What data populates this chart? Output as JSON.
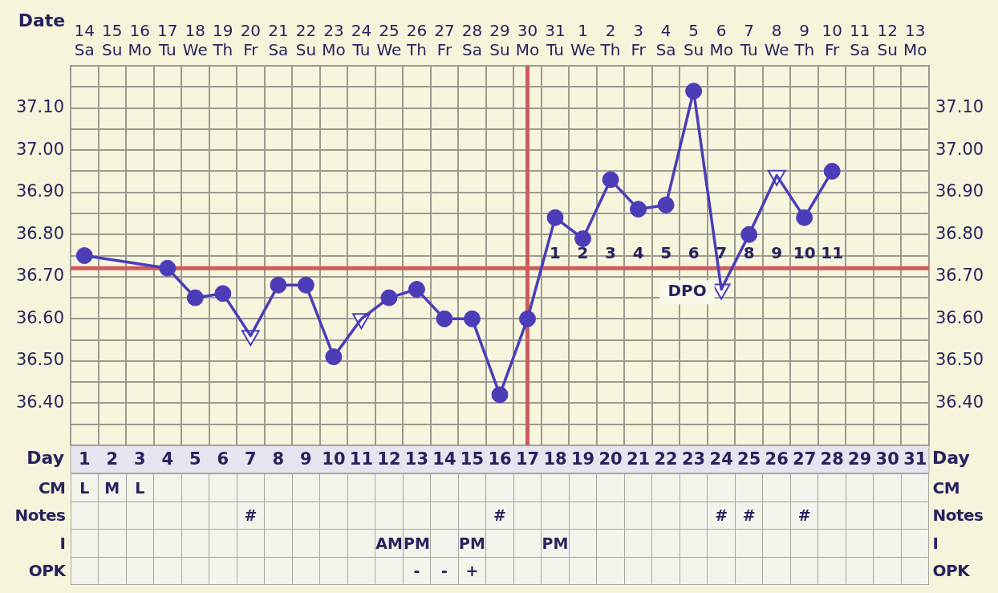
{
  "chart_data": [
    {
      "type": "line",
      "xlabel": "Date",
      "x2label": "Day",
      "categories": [
        "14 Sa",
        "15 Su",
        "16 Mo",
        "17 Tu",
        "18 We",
        "19 Th",
        "20 Fr",
        "21 Sa",
        "22 Su",
        "23 Mo",
        "24 Tu",
        "25 We",
        "26 Th",
        "27 Fr",
        "28 Sa",
        "29 Su",
        "30 Mo",
        "31 Tu",
        "1 We",
        "2 Th",
        "3 Fr",
        "4 Sa",
        "5 Su",
        "6 Mo",
        "7 Tu",
        "8 We",
        "9 Th",
        "10 Fr",
        "11 Sa",
        "12 Su",
        "13 Mo"
      ],
      "x2lim": [
        0.5,
        31.5
      ],
      "x2ticks": [
        1,
        2,
        3,
        4,
        5,
        6,
        7,
        8,
        9,
        10,
        11,
        12,
        13,
        14,
        15,
        16,
        17,
        18,
        19,
        20,
        21,
        22,
        23,
        24,
        25,
        26,
        27,
        28,
        29,
        30,
        31
      ],
      "series": [
        {
          "type": "line",
          "marker": "none",
          "color": "#4b3db8",
          "values": [
            36.75,
            null,
            null,
            36.72,
            36.65,
            36.66,
            36.56,
            36.68,
            36.68,
            36.51,
            36.6,
            36.65,
            36.67,
            36.6,
            36.6,
            36.42,
            36.6,
            36.84,
            36.79,
            36.93,
            36.86,
            36.87,
            37.14,
            36.67,
            36.8,
            36.94,
            36.84,
            36.95,
            null,
            null,
            null
          ]
        },
        {
          "type": "scatter",
          "marker": "circle",
          "color": "#4b3db8",
          "values": [
            36.75,
            null,
            null,
            36.72,
            36.65,
            36.66,
            null,
            36.68,
            36.68,
            36.51,
            null,
            36.65,
            36.67,
            36.6,
            36.6,
            36.42,
            36.6,
            36.84,
            36.79,
            36.93,
            36.86,
            36.87,
            37.14,
            null,
            36.8,
            null,
            36.84,
            36.95,
            null,
            null,
            null
          ]
        },
        {
          "type": "scatter",
          "marker": "triangle",
          "color": "#4b3db8",
          "values": [
            null,
            null,
            null,
            null,
            null,
            null,
            36.56,
            null,
            null,
            null,
            36.6,
            null,
            null,
            null,
            null,
            null,
            null,
            null,
            null,
            null,
            null,
            null,
            null,
            36.67,
            null,
            36.94,
            null,
            null,
            null,
            null,
            null
          ]
        }
      ],
      "ylim": [
        36.3,
        37.2
      ],
      "yticks": [
        {
          "value": 36.35,
          "label": null
        },
        {
          "value": 36.4,
          "label": "36.40"
        },
        {
          "value": 36.45,
          "label": null
        },
        {
          "value": 36.5,
          "label": "36.50"
        },
        {
          "value": 36.55,
          "label": null
        },
        {
          "value": 36.6,
          "label": "36.60"
        },
        {
          "value": 36.65,
          "label": null
        },
        {
          "value": 36.7,
          "label": "36.70"
        },
        {
          "value": 36.75,
          "label": null
        },
        {
          "value": 36.8,
          "label": "36.80"
        },
        {
          "value": 36.85,
          "label": null
        },
        {
          "value": 36.9,
          "label": "36.90"
        },
        {
          "value": 36.95,
          "label": null
        },
        {
          "value": 37.0,
          "label": "37.00"
        },
        {
          "value": 37.05,
          "label": null
        },
        {
          "value": 37.1,
          "label": "37.10"
        },
        {
          "value": 37.15,
          "label": null
        }
      ],
      "y2lim": [
        36.3,
        37.2
      ],
      "y2ticks": [
        {
          "value": 36.35,
          "label": null
        },
        {
          "value": 36.4,
          "label": "36.40"
        },
        {
          "value": 36.45,
          "label": null
        },
        {
          "value": 36.5,
          "label": "36.50"
        },
        {
          "value": 36.55,
          "label": null
        },
        {
          "value": 36.6,
          "label": "36.60"
        },
        {
          "value": 36.65,
          "label": null
        },
        {
          "value": 36.7,
          "label": "36.70"
        },
        {
          "value": 36.75,
          "label": null
        },
        {
          "value": 36.8,
          "label": "36.80"
        },
        {
          "value": 36.85,
          "label": null
        },
        {
          "value": 36.9,
          "label": "36.90"
        },
        {
          "value": 36.95,
          "label": null
        },
        {
          "value": 37.0,
          "label": "37.00"
        },
        {
          "value": 37.05,
          "label": null
        },
        {
          "value": 37.1,
          "label": "37.10"
        },
        {
          "value": 37.15,
          "label": null
        }
      ],
      "grid": true,
      "ref_lines": [
        {
          "axis": "y",
          "value": 36.72,
          "color": "#cd5c5c"
        },
        {
          "axis": "x",
          "value": "30 Mo",
          "color": "#cd5c5c"
        }
      ],
      "annotations": [
        "1",
        "2",
        "3",
        "4",
        "5",
        "6",
        "7",
        "8",
        "9",
        "10",
        "11",
        "DPO"
      ]
    },
    {
      "type": "other",
      "y_categories": [
        "CM",
        "Notes",
        "I",
        "OPK"
      ],
      "y2_categories": [
        "CM",
        "Notes",
        "I",
        "OPK"
      ],
      "cell_labels": [
        [
          "L",
          "M",
          "L",
          null,
          null,
          null,
          null,
          null,
          null,
          null,
          null,
          null,
          null,
          null,
          null,
          null,
          null,
          null,
          null,
          null,
          null,
          null,
          null,
          null,
          null,
          null,
          null,
          null,
          null,
          null,
          null
        ],
        [
          null,
          null,
          null,
          null,
          null,
          null,
          "#",
          null,
          null,
          null,
          null,
          null,
          null,
          null,
          null,
          "#",
          null,
          null,
          null,
          null,
          null,
          null,
          null,
          "#",
          "#",
          null,
          "#",
          null,
          null,
          null,
          null
        ],
        [
          null,
          null,
          null,
          null,
          null,
          null,
          null,
          null,
          null,
          null,
          null,
          "AM",
          "PM",
          null,
          "PM",
          null,
          null,
          "PM",
          null,
          null,
          null,
          null,
          null,
          null,
          null,
          null,
          null,
          null,
          null,
          null,
          null
        ],
        [
          null,
          null,
          null,
          null,
          null,
          null,
          null,
          null,
          null,
          null,
          null,
          null,
          "-",
          "-",
          "+",
          null,
          null,
          null,
          null,
          null,
          null,
          null,
          null,
          null,
          null,
          null,
          null,
          null,
          null,
          null,
          null
        ]
      ]
    }
  ]
}
